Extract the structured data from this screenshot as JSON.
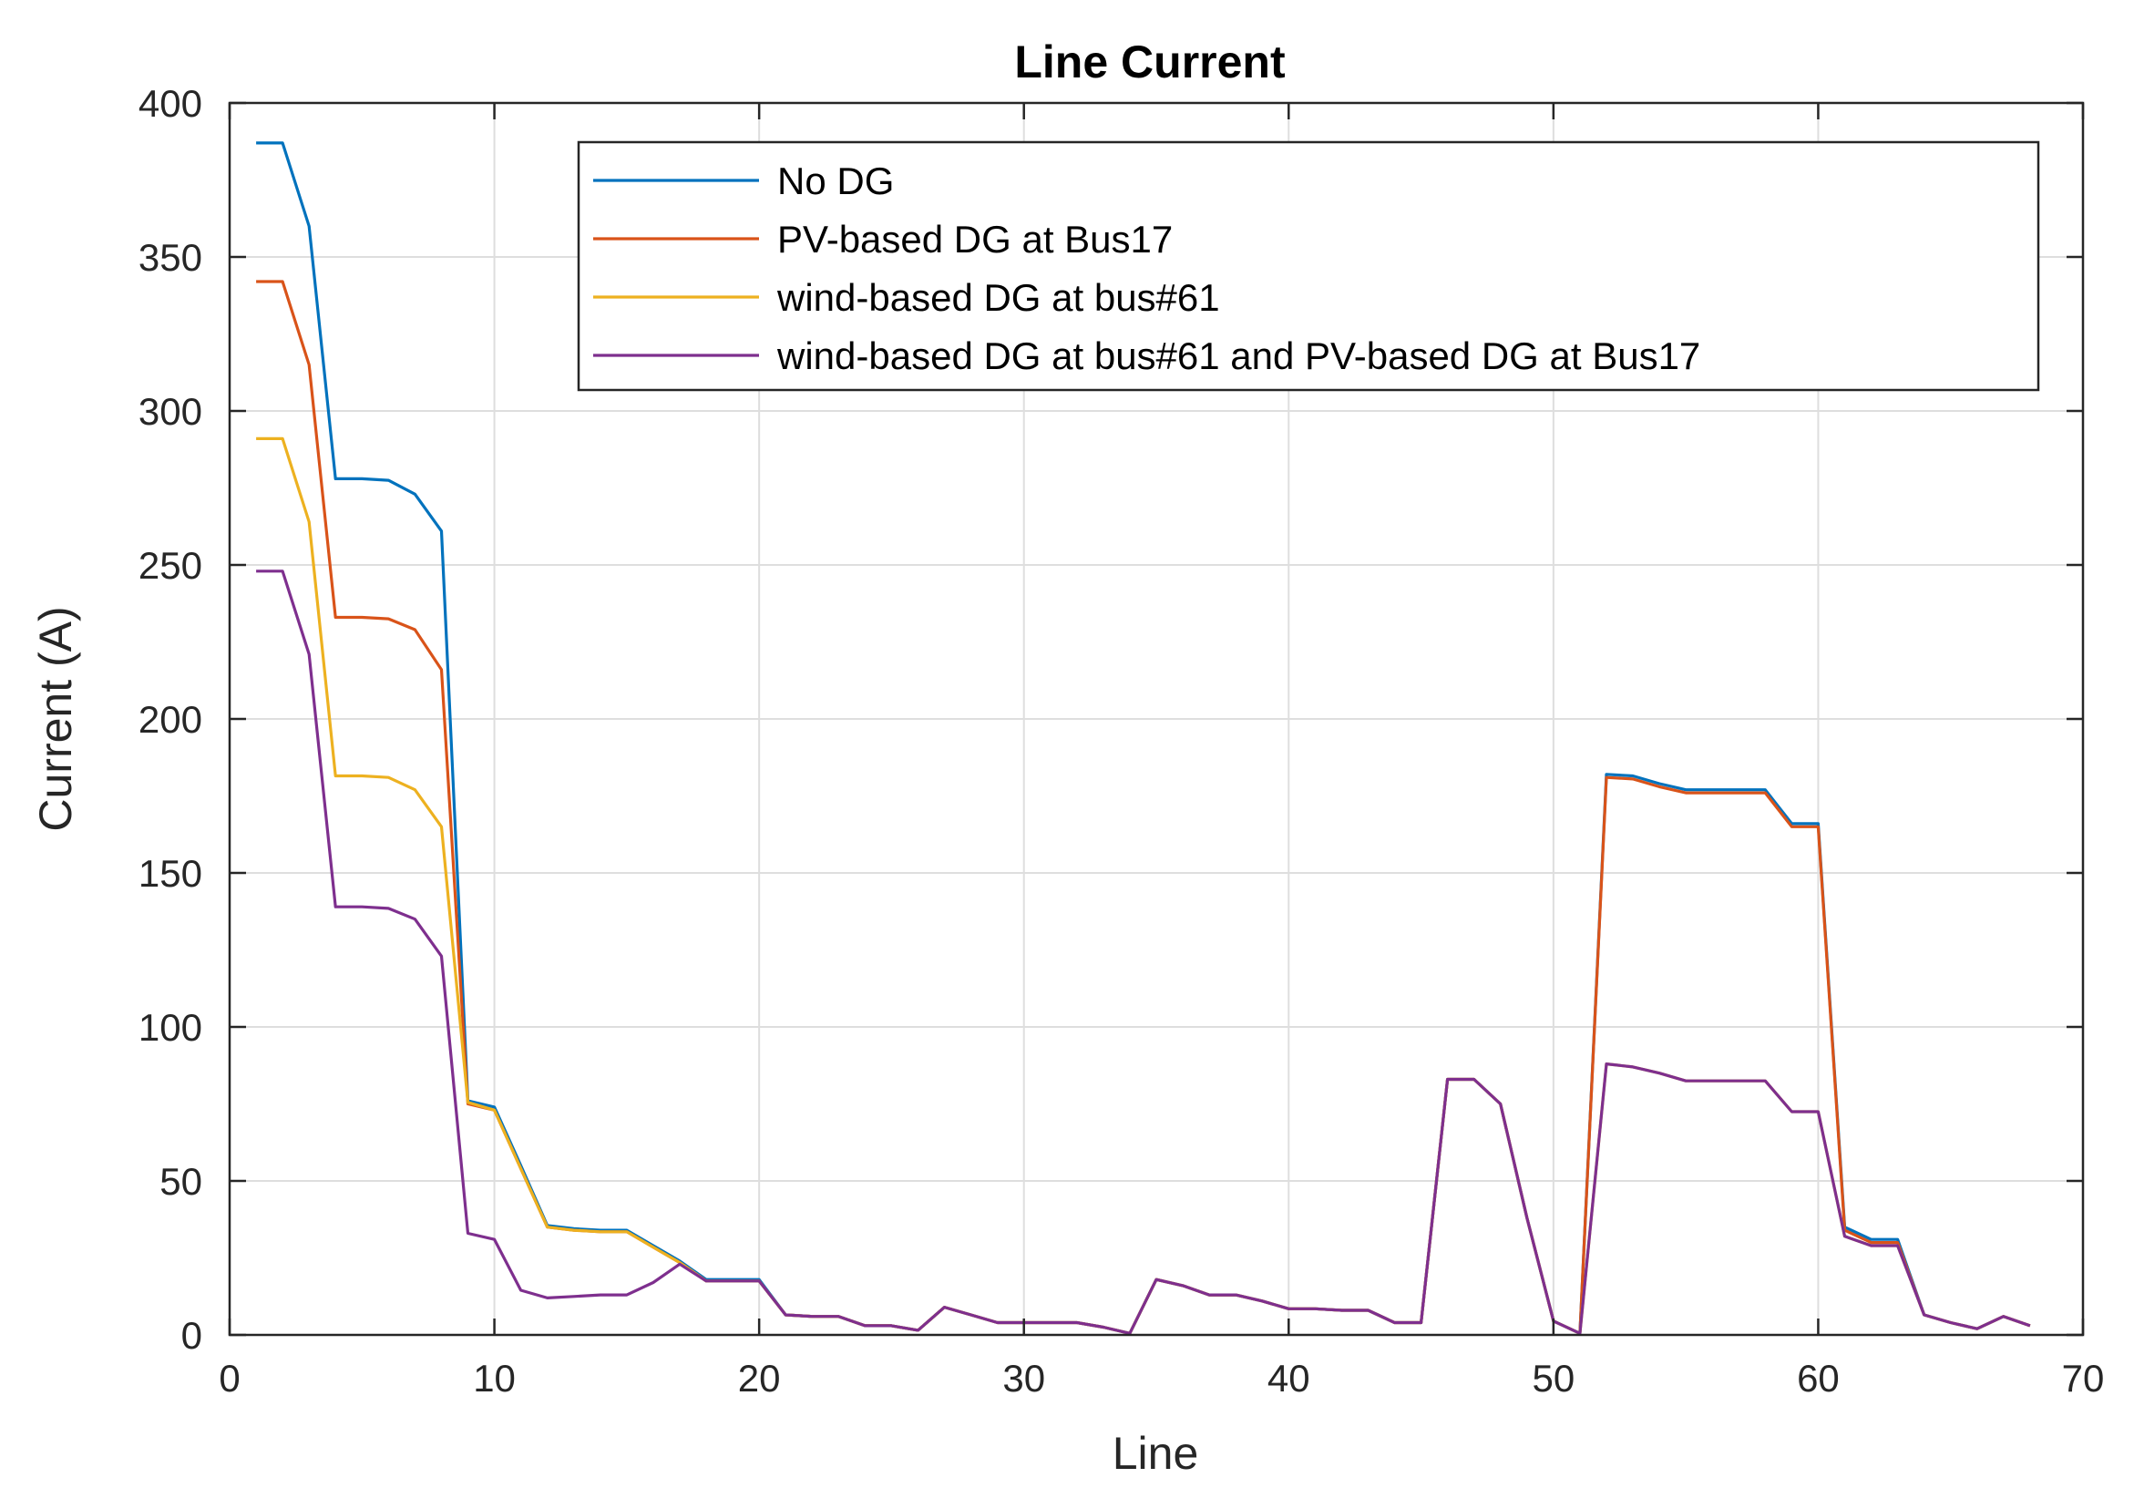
{
  "chart_data": {
    "type": "line",
    "title": "Line Current",
    "xlabel": "Line",
    "ylabel": "Current (A)",
    "xlim": [
      0,
      70
    ],
    "ylim": [
      0,
      400
    ],
    "xticks": [
      0,
      10,
      20,
      30,
      40,
      50,
      60,
      70
    ],
    "yticks": [
      0,
      50,
      100,
      150,
      200,
      250,
      300,
      350,
      400
    ],
    "grid": true,
    "legend_position": "top-right",
    "x": [
      1,
      2,
      3,
      4,
      5,
      6,
      7,
      8,
      9,
      10,
      11,
      12,
      13,
      14,
      15,
      16,
      17,
      18,
      19,
      20,
      21,
      22,
      23,
      24,
      25,
      26,
      27,
      28,
      29,
      30,
      31,
      32,
      33,
      34,
      35,
      36,
      37,
      38,
      39,
      40,
      41,
      42,
      43,
      44,
      45,
      46,
      47,
      48,
      49,
      50,
      51,
      52,
      53,
      54,
      55,
      56,
      57,
      58,
      59,
      60,
      61,
      62,
      63,
      64,
      65,
      66,
      67,
      68
    ],
    "series": [
      {
        "name": "No DG",
        "color": "#0072BD",
        "values": [
          387,
          387,
          360,
          278,
          278,
          277.5,
          273,
          261,
          76,
          74,
          55,
          35.5,
          34.5,
          34,
          34,
          29,
          24,
          18,
          18,
          18,
          6.5,
          6,
          6,
          3,
          3,
          1.5,
          9,
          6.5,
          4,
          4,
          4,
          4,
          2.5,
          0.5,
          18,
          16,
          13,
          13,
          11,
          8.5,
          8.5,
          8,
          8,
          4,
          4,
          83,
          83,
          75,
          38,
          4.5,
          0.5,
          182,
          181.5,
          179,
          177,
          177,
          177,
          177,
          166,
          166,
          35,
          31,
          31,
          6.5,
          4,
          2,
          6,
          3
        ]
      },
      {
        "name": " PV-based DG at Bus17",
        "color": "#D95319",
        "values": [
          342,
          342,
          315,
          233,
          233,
          232.5,
          229,
          216,
          75,
          73,
          54,
          35,
          34,
          33.5,
          33.5,
          28.5,
          23.5,
          17.5,
          17.5,
          17.5,
          6.5,
          6,
          6,
          3,
          3,
          1.5,
          9,
          6.5,
          4,
          4,
          4,
          4,
          2.5,
          0.5,
          18,
          16,
          13,
          13,
          11,
          8.5,
          8.5,
          8,
          8,
          4,
          4,
          83,
          83,
          75,
          38,
          4.5,
          0.5,
          181,
          180.5,
          178,
          176,
          176,
          176,
          176,
          165,
          165,
          34,
          30,
          30,
          6.5,
          4,
          2,
          6,
          3
        ]
      },
      {
        "name": "wind-based DG at bus#61",
        "color": "#EDB120",
        "values": [
          291,
          291,
          264,
          181.5,
          181.5,
          181,
          177,
          165,
          75.5,
          73,
          54,
          35,
          34,
          33.5,
          33.5,
          28.5,
          23.5,
          17.5,
          17.5,
          17.5,
          6.5,
          6,
          6,
          3,
          3,
          1.5,
          9,
          6.5,
          4,
          4,
          4,
          4,
          2.5,
          0.5,
          18,
          16,
          13,
          13,
          11,
          8.5,
          8.5,
          8,
          8,
          4,
          4,
          83,
          83,
          75,
          38,
          4.5,
          0.5,
          88,
          87,
          85,
          82.5,
          82.5,
          82.5,
          82.5,
          72.5,
          72.5,
          32,
          29,
          29,
          6.5,
          4,
          2,
          6,
          3
        ]
      },
      {
        "name": "wind-based DG at bus#61 and PV-based DG at Bus17",
        "color": "#7E2F8E",
        "values": [
          248,
          248,
          221,
          139,
          139,
          138.5,
          135,
          123,
          33,
          31,
          14.5,
          12,
          12.5,
          13,
          13,
          17,
          23,
          17.5,
          17.5,
          17.5,
          6.5,
          6,
          6,
          3,
          3,
          1.5,
          9,
          6.5,
          4,
          4,
          4,
          4,
          2.5,
          0.5,
          18,
          16,
          13,
          13,
          11,
          8.5,
          8.5,
          8,
          8,
          4,
          4,
          83,
          83,
          75,
          38,
          4.5,
          0.5,
          88,
          87,
          85,
          82.5,
          82.5,
          82.5,
          82.5,
          72.5,
          72.5,
          32,
          29,
          29,
          6.5,
          4,
          2,
          6,
          3
        ]
      }
    ]
  }
}
